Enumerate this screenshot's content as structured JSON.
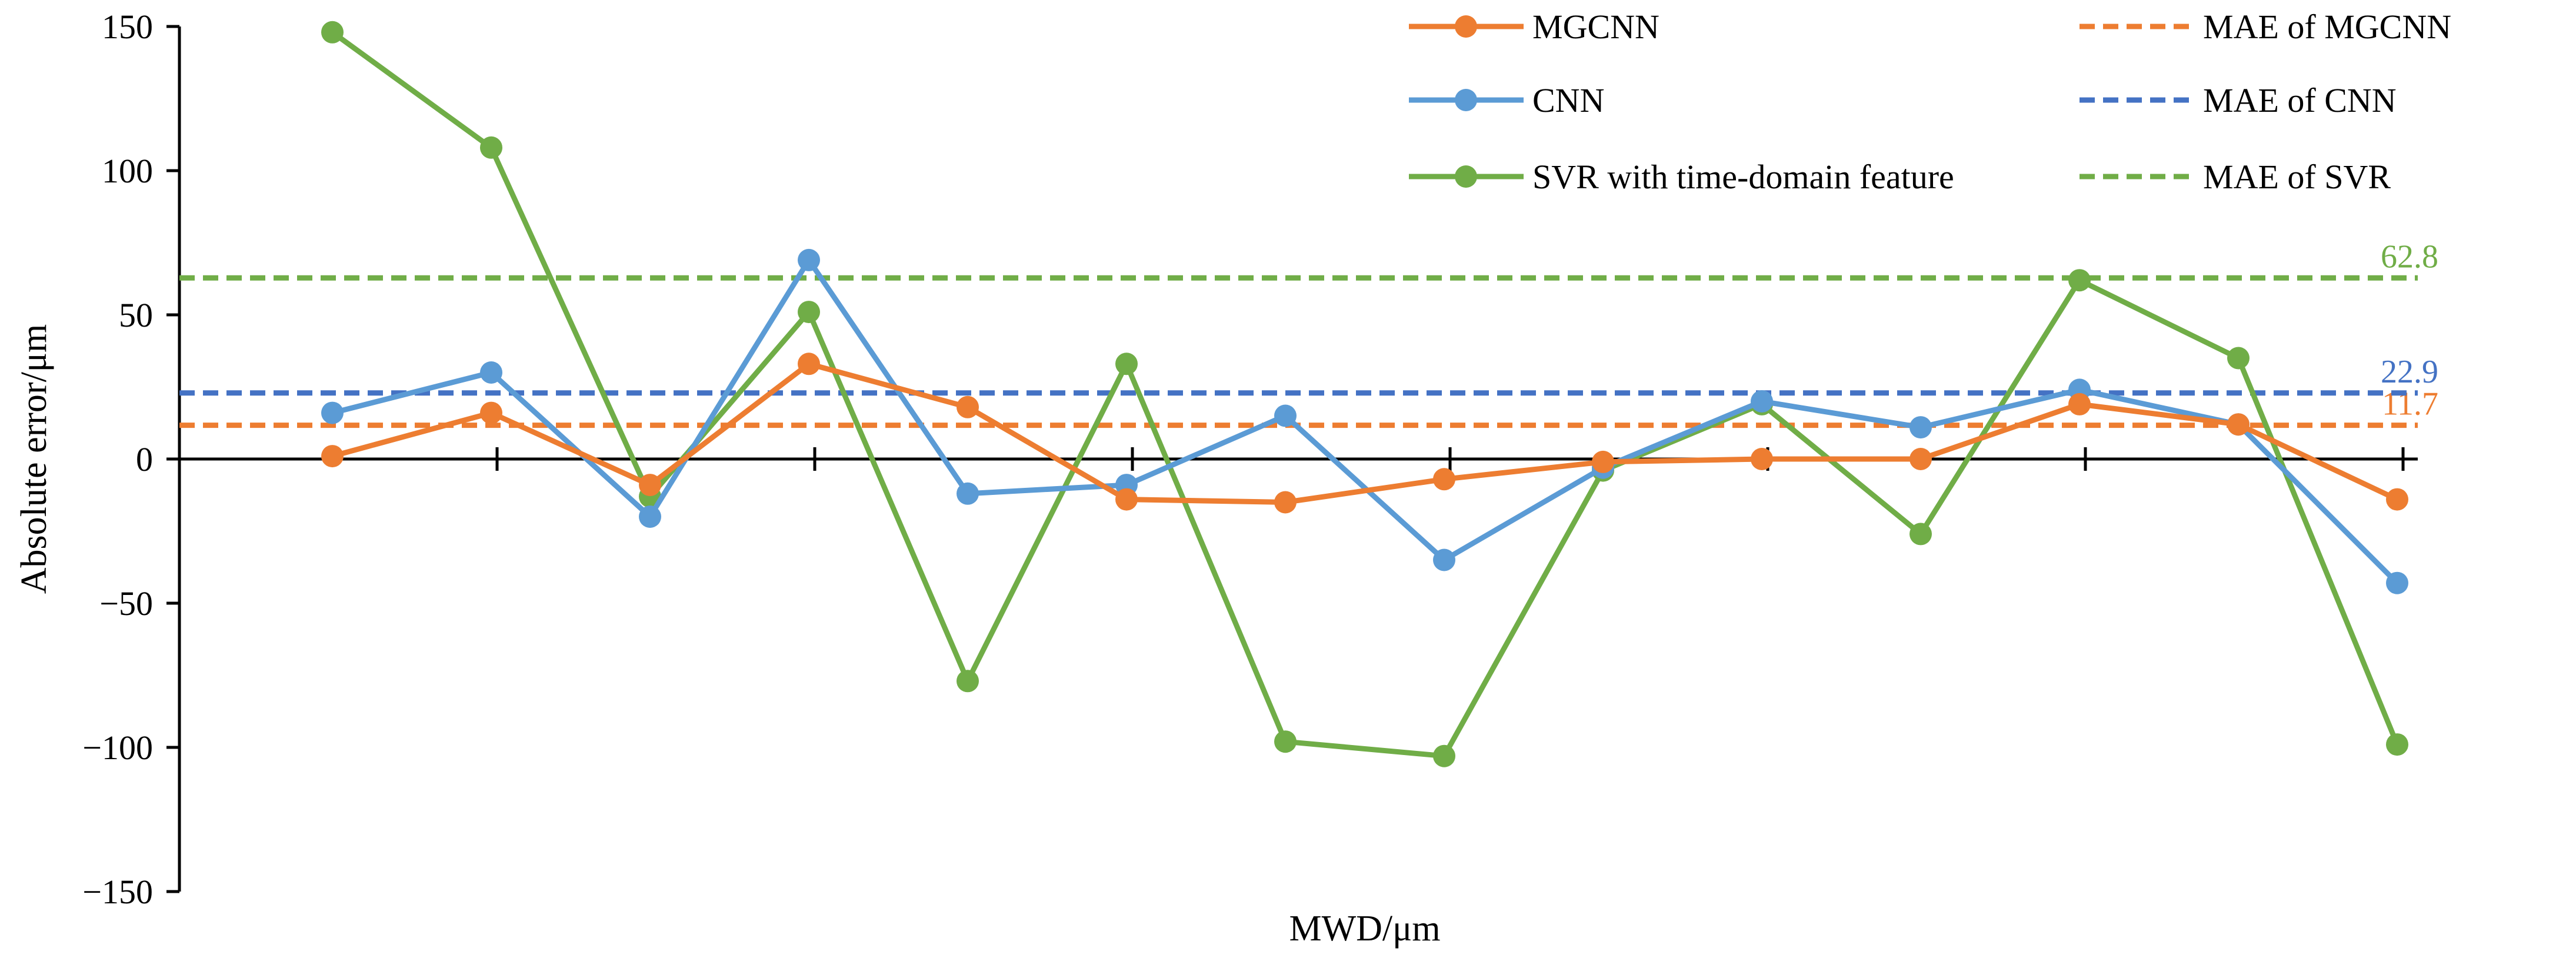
{
  "chart_data": {
    "type": "line",
    "xlabel": "MWD/μm",
    "ylabel": "Absolute error/μm",
    "ylim": [
      -150,
      150
    ],
    "yticks": [
      150,
      100,
      50,
      0,
      -50,
      -100,
      -150
    ],
    "ytick_labels": [
      "150",
      "100",
      "50",
      "0",
      "−50",
      "−100",
      "−150"
    ],
    "x": [
      1,
      2,
      3,
      4,
      5,
      6,
      7,
      8,
      9,
      10,
      11,
      12,
      13,
      14
    ],
    "grid": false,
    "legend_position": "top-right",
    "series": [
      {
        "name": "MGCNN",
        "color": "#ED7D31",
        "values": [
          1,
          16,
          -9,
          33,
          18,
          -14,
          -15,
          -7,
          -1,
          0,
          0,
          19,
          12,
          -14
        ]
      },
      {
        "name": "CNN",
        "color": "#5B9BD5",
        "values": [
          16,
          30,
          -20,
          69,
          -12,
          -9,
          15,
          -35,
          -3,
          20,
          11,
          24,
          12,
          -43
        ]
      },
      {
        "name": "SVR with time-domain feature",
        "color": "#70AD47",
        "values": [
          148,
          108,
          -13,
          51,
          -77,
          33,
          -98,
          -103,
          -4,
          19,
          -26,
          62,
          35,
          -99
        ]
      }
    ],
    "reference_lines": [
      {
        "name": "MAE of MGCNN",
        "value": 11.7,
        "label": "11.7",
        "color": "#ED7D31"
      },
      {
        "name": "MAE of CNN",
        "value": 22.9,
        "label": "22.9",
        "color": "#4472C4"
      },
      {
        "name": "MAE of SVR",
        "value": 62.8,
        "label": "62.8",
        "color": "#70AD47"
      }
    ]
  }
}
